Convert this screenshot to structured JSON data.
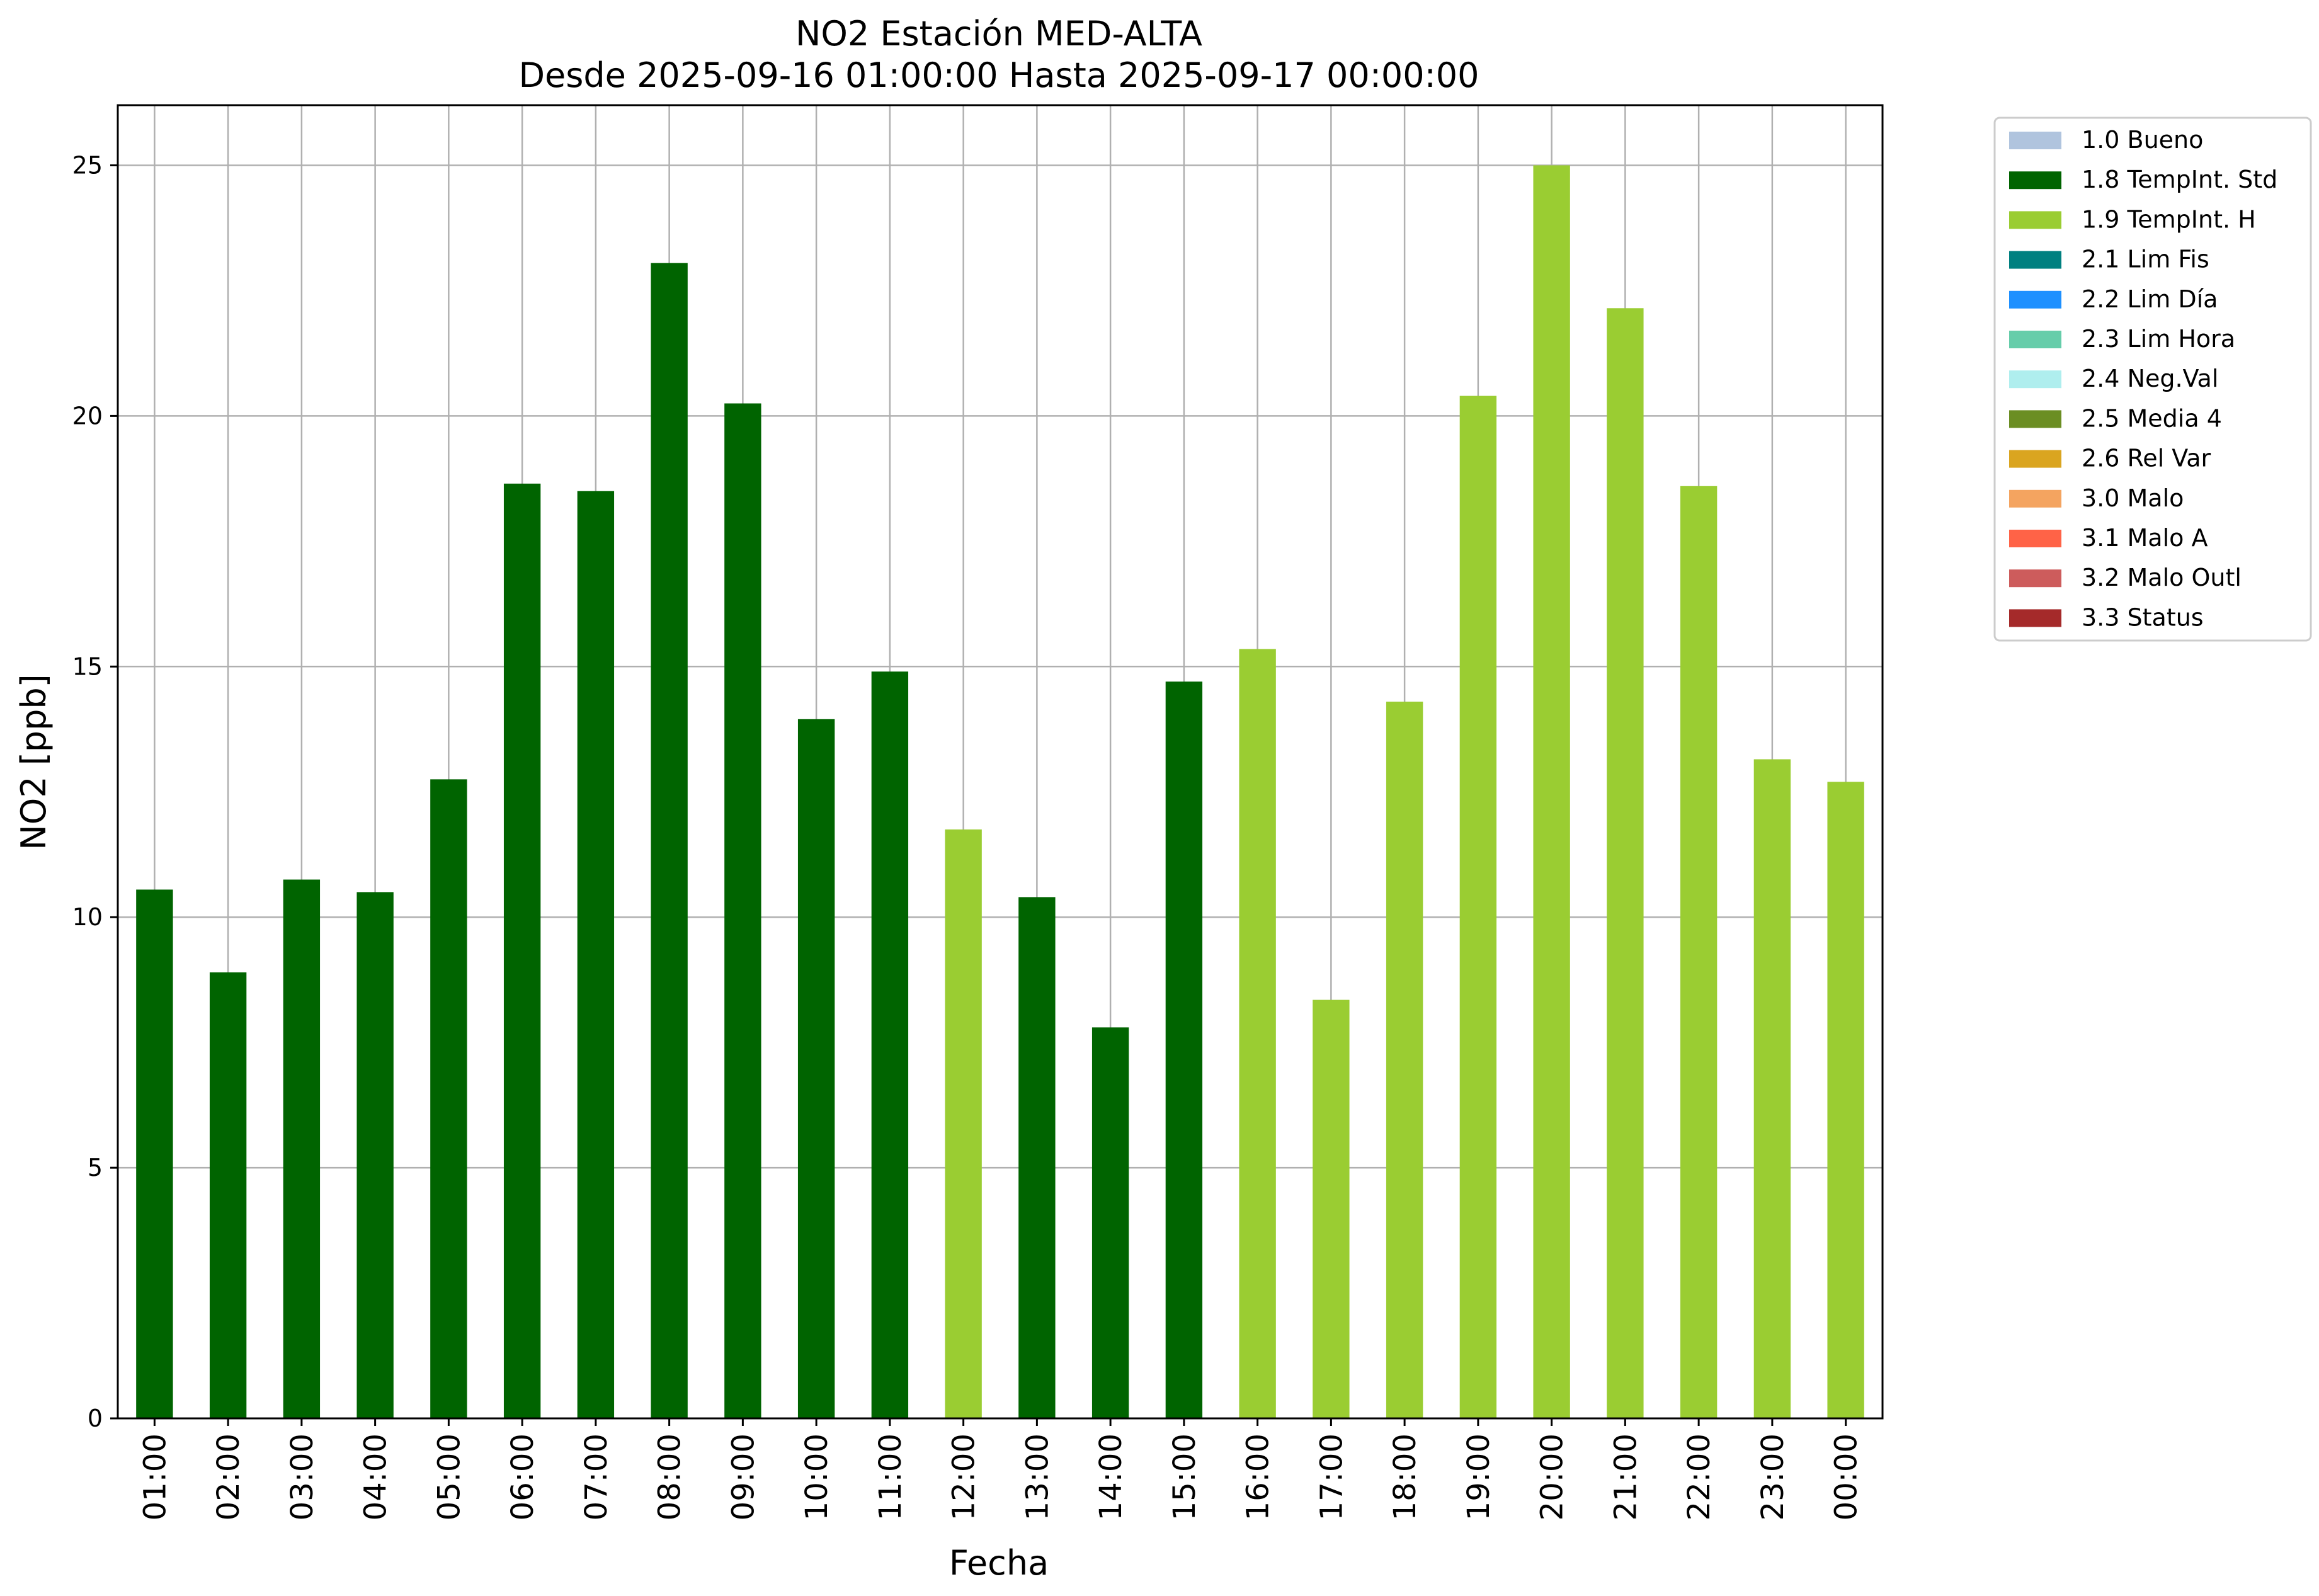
{
  "chart_data": {
    "type": "bar",
    "title": "NO2 Estación MED-ALTA",
    "subtitle": "Desde 2025-09-16 01:00:00 Hasta 2025-09-17 00:00:00",
    "xlabel": "Fecha",
    "ylabel": "NO2 [ppb]",
    "ylim": [
      0,
      26.2
    ],
    "yticks": [
      0,
      5,
      10,
      15,
      20,
      25
    ],
    "grid": true,
    "legend_position": "outside-top-right",
    "categories": [
      "01:00",
      "02:00",
      "03:00",
      "04:00",
      "05:00",
      "06:00",
      "07:00",
      "08:00",
      "09:00",
      "10:00",
      "11:00",
      "12:00",
      "13:00",
      "14:00",
      "15:00",
      "16:00",
      "17:00",
      "18:00",
      "19:00",
      "20:00",
      "21:00",
      "22:00",
      "23:00",
      "00:00"
    ],
    "values": [
      10.55,
      8.9,
      10.75,
      10.5,
      12.75,
      18.65,
      18.5,
      23.05,
      20.25,
      13.95,
      14.9,
      11.75,
      10.4,
      7.8,
      14.7,
      15.35,
      8.35,
      14.3,
      20.4,
      25.0,
      22.15,
      18.6,
      13.15,
      12.7
    ],
    "flags": [
      "1.8 TempInt. Std",
      "1.8 TempInt. Std",
      "1.8 TempInt. Std",
      "1.8 TempInt. Std",
      "1.8 TempInt. Std",
      "1.8 TempInt. Std",
      "1.8 TempInt. Std",
      "1.8 TempInt. Std",
      "1.8 TempInt. Std",
      "1.8 TempInt. Std",
      "1.8 TempInt. Std",
      "1.9 TempInt. H",
      "1.8 TempInt. Std",
      "1.8 TempInt. Std",
      "1.8 TempInt. Std",
      "1.9 TempInt. H",
      "1.9 TempInt. H",
      "1.9 TempInt. H",
      "1.9 TempInt. H",
      "1.9 TempInt. H",
      "1.9 TempInt. H",
      "1.9 TempInt. H",
      "1.9 TempInt. H",
      "1.9 TempInt. H"
    ],
    "legend": [
      {
        "label": "1.0 Bueno",
        "color": "#b0c4de"
      },
      {
        "label": "1.8 TempInt. Std",
        "color": "#006400"
      },
      {
        "label": "1.9 TempInt. H",
        "color": "#9acd32"
      },
      {
        "label": "2.1 Lim Fis",
        "color": "#008080"
      },
      {
        "label": "2.2 Lim Día",
        "color": "#1e90ff"
      },
      {
        "label": "2.3 Lim Hora",
        "color": "#66cdaa"
      },
      {
        "label": "2.4 Neg.Val",
        "color": "#afeeee"
      },
      {
        "label": "2.5 Media 4",
        "color": "#6b8e23"
      },
      {
        "label": "2.6 Rel Var",
        "color": "#daa520"
      },
      {
        "label": "3.0 Malo",
        "color": "#f4a460"
      },
      {
        "label": "3.1 Malo A",
        "color": "#ff6347"
      },
      {
        "label": "3.2 Malo Outl",
        "color": "#cd5c5c"
      },
      {
        "label": "3.3 Status",
        "color": "#a52a2a"
      }
    ]
  }
}
